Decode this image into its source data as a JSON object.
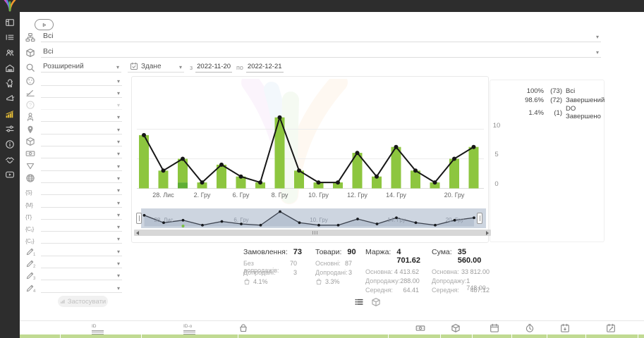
{
  "sidebar": {
    "items": [
      {
        "icon": "dashboard-icon",
        "active": false
      },
      {
        "icon": "orders-icon",
        "active": false
      },
      {
        "icon": "clients-icon",
        "active": false
      },
      {
        "icon": "warehouse-icon",
        "active": false
      },
      {
        "icon": "returns-icon",
        "active": false
      },
      {
        "icon": "marketing-icon",
        "active": false
      },
      {
        "icon": "analytics-icon",
        "active": true
      },
      {
        "icon": "settings-icon",
        "active": false
      },
      {
        "icon": "info-icon",
        "active": false
      },
      {
        "icon": "partners-icon",
        "active": false
      },
      {
        "icon": "video-icon",
        "active": false
      }
    ]
  },
  "help_button": {
    "icon": "play-icon"
  },
  "filters": {
    "category": {
      "icon": "sitemap-icon",
      "value": "Всі"
    },
    "product": {
      "icon": "package-icon",
      "value": "Всі"
    },
    "search": {
      "icon": "search-icon",
      "mode_value": "Розширений",
      "date_field": {
        "icon": "calendar-check-icon",
        "value": "Здане"
      },
      "from_label": "з",
      "date_from": "2022-11-20",
      "to_label": "по",
      "date_to": "2022-12-21"
    },
    "param_rows": [
      {
        "icon": "planet-icon"
      },
      {
        "icon": "level-icon"
      },
      {
        "icon": "help-icon",
        "disabled": true
      },
      {
        "icon": "person-network-icon"
      },
      {
        "icon": "pin-icon"
      },
      {
        "icon": "cube-icon"
      },
      {
        "icon": "banknote-icon"
      },
      {
        "icon": "funnel-icon"
      },
      {
        "icon": "globe-icon"
      },
      {
        "icon": "param-s-icon",
        "glyph": "{S}"
      },
      {
        "icon": "param-m-icon",
        "glyph": "{M}"
      },
      {
        "icon": "param-t-icon",
        "glyph": "{T}"
      },
      {
        "icon": "param-c1-icon",
        "glyph": "{C₁}"
      },
      {
        "icon": "param-c2-icon",
        "glyph": "{C₂}"
      },
      {
        "icon": "pencil-1-icon",
        "sub": "1"
      },
      {
        "icon": "pencil-2-icon",
        "sub": "2"
      },
      {
        "icon": "pencil-3-icon",
        "sub": "3"
      },
      {
        "icon": "pencil-4-icon",
        "sub": "4"
      }
    ],
    "apply_button": {
      "icon": "mini-chart-icon",
      "label": "Застосувати",
      "disabled": true
    }
  },
  "chart_data": {
    "type": "bar+line",
    "title": "",
    "x_ticks": [
      {
        "bar": 1,
        "label": "28. Лис"
      },
      {
        "bar": 3,
        "label": "2. Гру"
      },
      {
        "bar": 5,
        "label": "6. Гру"
      },
      {
        "bar": 7,
        "label": "8. Гру"
      },
      {
        "bar": 9,
        "label": "10. Гру"
      },
      {
        "bar": 11,
        "label": "12. Гру"
      },
      {
        "bar": 13,
        "label": "14. Гру"
      },
      {
        "bar": 16,
        "label": "20. Гру"
      }
    ],
    "series": [
      {
        "name": "Всі",
        "type": "line",
        "color": "#161616",
        "values": [
          9,
          3,
          5,
          1,
          4,
          2,
          1,
          12,
          3,
          1,
          1,
          6,
          2,
          7,
          3,
          1,
          5,
          7
        ]
      },
      {
        "name": "Завершений",
        "type": "bar",
        "color": "#8dc63f",
        "values": [
          9,
          3,
          4,
          1,
          4,
          2,
          1,
          12,
          3,
          1,
          1,
          6,
          2,
          7,
          3,
          1,
          5,
          7
        ]
      },
      {
        "name": "DO Завершено",
        "type": "bar",
        "color": "#5fae33",
        "values": [
          0,
          0,
          1,
          0,
          0,
          0,
          0,
          0,
          0,
          0,
          0,
          0,
          0,
          0,
          0,
          0,
          0,
          0
        ]
      }
    ],
    "ylim": [
      0,
      12.6
    ],
    "yticks": [
      0,
      5,
      10
    ],
    "grid": true,
    "legend_position": "top-right"
  },
  "legend": {
    "entries": [
      {
        "swatch": "line",
        "color": "#161616",
        "percent": "100%",
        "count": "(73)",
        "label": "Всі"
      },
      {
        "swatch": "dot",
        "color": "#8bc34a",
        "percent": "98.6%",
        "count": "(72)",
        "label": "Завершений"
      },
      {
        "swatch": "dot",
        "color": "#4caf50",
        "percent": "1.4%",
        "count": "(1)",
        "label": "DO Завершено"
      }
    ]
  },
  "minimap": {
    "labels": [
      {
        "bar": 1,
        "label": "28. Лис"
      },
      {
        "bar": 5,
        "label": "6. Гру"
      },
      {
        "bar": 9,
        "label": "10. Гру"
      },
      {
        "bar": 13,
        "label": "14. Гру"
      },
      {
        "bar": 16,
        "label": "20. Гру"
      }
    ]
  },
  "stats": {
    "columns": [
      {
        "title": "Замовлення:",
        "value": "73",
        "rows": [
          {
            "label": "Без допродажів:",
            "value": "70"
          },
          {
            "label": "Допродані:",
            "value": "3"
          },
          {
            "icon": "bag-percent-icon",
            "value": "4.1%"
          }
        ]
      },
      {
        "title": "Товари:",
        "value": "90",
        "rows": [
          {
            "label": "Основні:",
            "value": "87"
          },
          {
            "label": "Допродані:",
            "value": "3"
          },
          {
            "icon": "bag-percent-icon",
            "value": "3.3%"
          }
        ]
      },
      {
        "title": "Маржа:",
        "value": "4 701.62",
        "rows": [
          {
            "label": "Основна:",
            "value": "4 413.62"
          },
          {
            "label": "Допродажу:",
            "value": "288.00"
          },
          {
            "label": "Середня:",
            "value": "64.41"
          }
        ]
      },
      {
        "title": "Сума:",
        "value": "35 560.00",
        "rows": [
          {
            "label": "Основна:",
            "value": "33 812.00"
          },
          {
            "label": "Допродажу:",
            "value": "1 748.00"
          },
          {
            "label": "Середня:",
            "value": "487.12"
          }
        ]
      }
    ]
  },
  "view_toggles": [
    {
      "icon": "list-view-icon",
      "active": true
    },
    {
      "icon": "cube-view-icon",
      "active": false
    }
  ],
  "bottom_table": {
    "column_icons": [
      "id-lines-icon",
      "id-anchor-icon",
      "basket-icon",
      "banknote-icon",
      "package-icon",
      "calendar-icon",
      "timer-icon",
      "calendar-in-icon",
      "calendar-edit-icon"
    ]
  },
  "colors": {
    "bar": "#8dc63f",
    "bar_dark": "#5fae33",
    "line": "#161616",
    "sidebar_bg": "#2d2d2d",
    "active_icon": "#ecc238",
    "minimap_bg": "#cdd5e0"
  }
}
